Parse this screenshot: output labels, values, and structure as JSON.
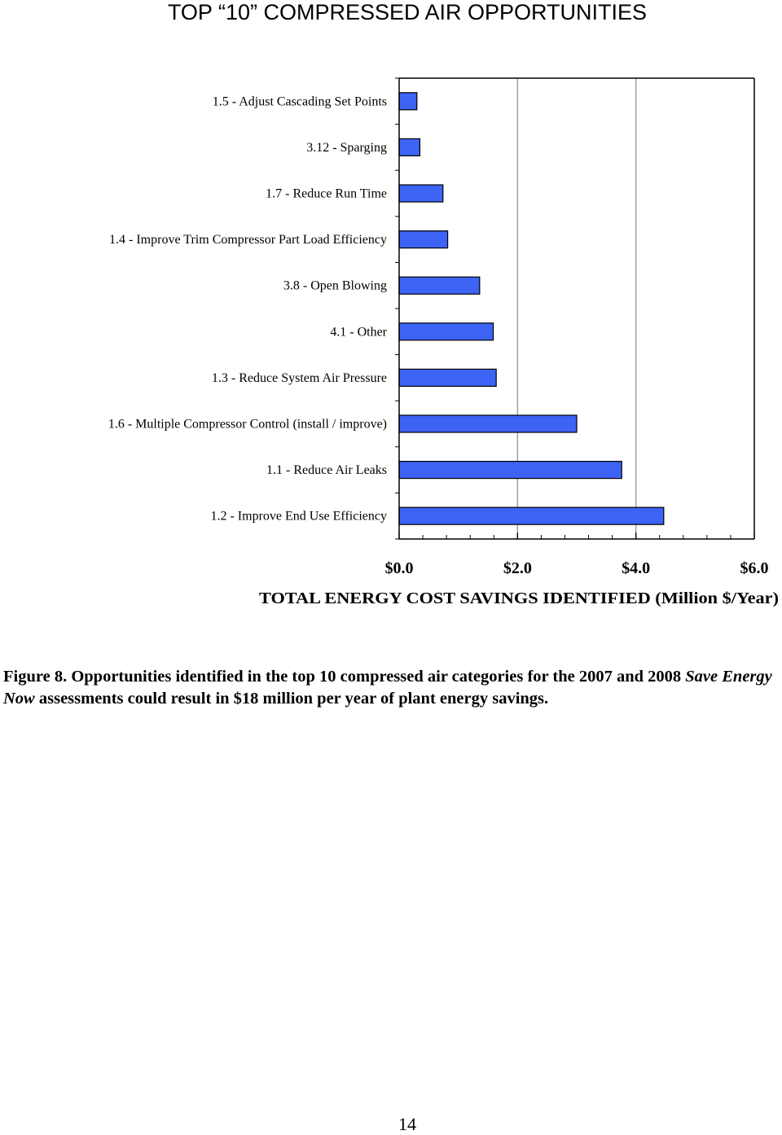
{
  "title": "TOP “10” COMPRESSED AIR OPPORTUNITIES",
  "chart_data": {
    "type": "bar",
    "orientation": "horizontal",
    "title": "TOP “10” COMPRESSED AIR OPPORTUNITIES",
    "xlabel": "TOTAL ENERGY COST SAVINGS IDENTIFIED (Million $/Year)",
    "ylabel": "",
    "categories": [
      "1.5 - Adjust Cascading Set Points",
      "3.12 - Sparging",
      "1.7 - Reduce Run Time",
      "1.4 - Improve Trim Compressor Part Load Efficiency",
      "3.8 - Open Blowing",
      "4.1 - Other",
      "1.3 - Reduce System Air Pressure",
      "1.6 - Multiple Compressor Control (install / improve)",
      "1.1 - Reduce Air Leaks",
      "1.2 - Improve End Use Efficiency"
    ],
    "values": [
      0.3,
      0.35,
      0.74,
      0.82,
      1.36,
      1.59,
      1.64,
      3.0,
      3.76,
      4.47
    ],
    "xlim": [
      0,
      6
    ],
    "xticks": [
      0,
      2,
      4,
      6
    ],
    "xtick_labels": [
      "$0.0",
      "$2.0",
      "$4.0",
      "$6.0"
    ],
    "gridlines": "vertical",
    "bar_color": "#3d63f5",
    "legend": "none"
  },
  "caption": {
    "figure_label": "Figure 8.",
    "text_part1": "Opportunities identified in the top 10 compressed air categories for the 2007 and 2008",
    "italic": "Save Energy Now",
    "text_part2": "assessments could result in $18 million per year of plant energy savings."
  },
  "page_number": "14"
}
